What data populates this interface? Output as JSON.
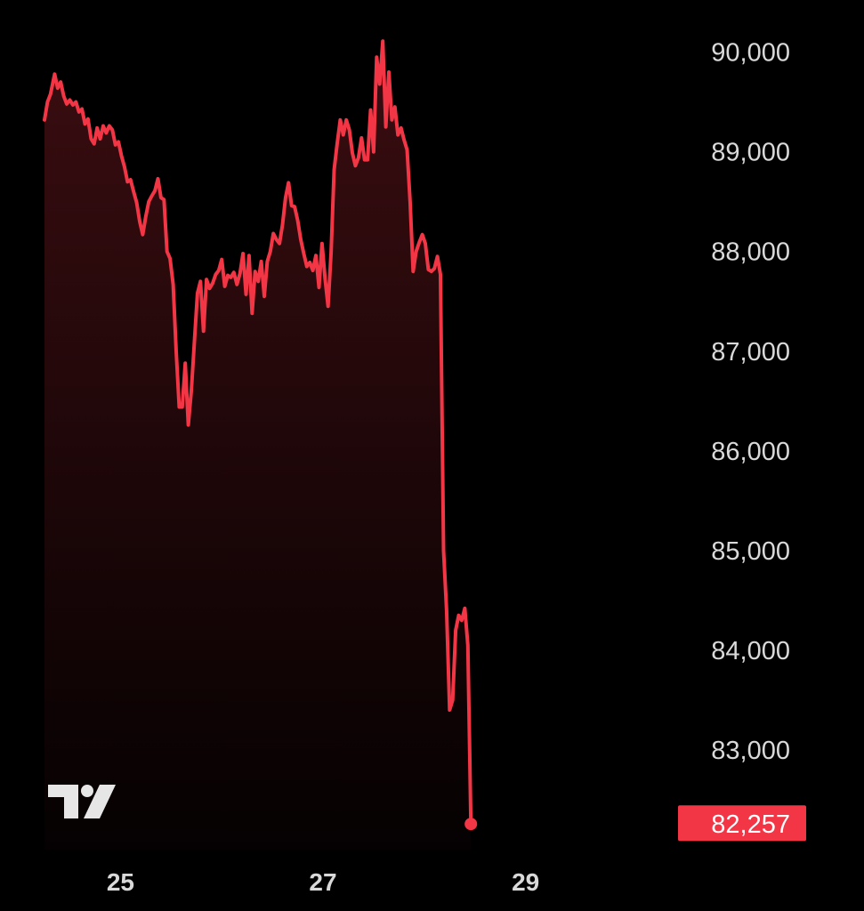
{
  "colors": {
    "background": "#000000",
    "line": "#f23645",
    "axis_text": "#d9d9d9",
    "badge_text": "#ffffff"
  },
  "logo": {
    "icon": "tradingview-logo-icon",
    "text": "TV"
  },
  "chart_data": {
    "type": "area",
    "title": "",
    "xlabel": "",
    "ylabel": "",
    "x_ticks": [
      {
        "label": "25",
        "x": 25.0
      },
      {
        "label": "27",
        "x": 27.0
      },
      {
        "label": "29",
        "x": 29.0
      }
    ],
    "y_ticks": [
      "90,000",
      "89,000",
      "88,000",
      "87,000",
      "86,000",
      "85,000",
      "84,000",
      "83,000"
    ],
    "y_tick_values": [
      90000,
      89000,
      88000,
      87000,
      86000,
      85000,
      84000,
      83000
    ],
    "ylim": [
      82000,
      90300
    ],
    "xlim": [
      24.25,
      30.4
    ],
    "grid": false,
    "last_value": 82257,
    "last_value_label": "82,257",
    "series": [
      {
        "values": [
          [
            24.25,
            89320
          ],
          [
            24.28,
            89500
          ],
          [
            24.31,
            89580
          ],
          [
            24.35,
            89780
          ],
          [
            24.38,
            89640
          ],
          [
            24.41,
            89700
          ],
          [
            24.44,
            89560
          ],
          [
            24.47,
            89480
          ],
          [
            24.5,
            89520
          ],
          [
            24.53,
            89470
          ],
          [
            24.56,
            89500
          ],
          [
            24.59,
            89400
          ],
          [
            24.62,
            89430
          ],
          [
            24.65,
            89280
          ],
          [
            24.68,
            89330
          ],
          [
            24.71,
            89130
          ],
          [
            24.74,
            89080
          ],
          [
            24.77,
            89240
          ],
          [
            24.8,
            89130
          ],
          [
            24.83,
            89260
          ],
          [
            24.86,
            89190
          ],
          [
            24.89,
            89260
          ],
          [
            24.92,
            89220
          ],
          [
            24.95,
            89070
          ],
          [
            24.98,
            89100
          ],
          [
            25.01,
            88960
          ],
          [
            25.04,
            88850
          ],
          [
            25.07,
            88700
          ],
          [
            25.1,
            88720
          ],
          [
            25.13,
            88600
          ],
          [
            25.16,
            88490
          ],
          [
            25.19,
            88300
          ],
          [
            25.22,
            88170
          ],
          [
            25.25,
            88350
          ],
          [
            25.28,
            88500
          ],
          [
            25.31,
            88560
          ],
          [
            25.34,
            88610
          ],
          [
            25.37,
            88730
          ],
          [
            25.4,
            88540
          ],
          [
            25.43,
            88520
          ],
          [
            25.46,
            88000
          ],
          [
            25.49,
            87930
          ],
          [
            25.52,
            87670
          ],
          [
            25.55,
            87000
          ],
          [
            25.58,
            86440
          ],
          [
            25.61,
            86440
          ],
          [
            25.64,
            86880
          ],
          [
            25.67,
            86260
          ],
          [
            25.7,
            86600
          ],
          [
            25.73,
            87100
          ],
          [
            25.76,
            87580
          ],
          [
            25.79,
            87700
          ],
          [
            25.82,
            87200
          ],
          [
            25.85,
            87720
          ],
          [
            25.88,
            87630
          ],
          [
            25.91,
            87680
          ],
          [
            25.94,
            87770
          ],
          [
            25.97,
            87810
          ],
          [
            26.0,
            87920
          ],
          [
            26.03,
            87650
          ],
          [
            26.06,
            87760
          ],
          [
            26.09,
            87740
          ],
          [
            26.12,
            87790
          ],
          [
            26.15,
            87670
          ],
          [
            26.18,
            87780
          ],
          [
            26.21,
            87980
          ],
          [
            26.24,
            87570
          ],
          [
            26.27,
            87960
          ],
          [
            26.3,
            87380
          ],
          [
            26.33,
            87800
          ],
          [
            26.36,
            87700
          ],
          [
            26.39,
            87900
          ],
          [
            26.42,
            87550
          ],
          [
            26.45,
            87900
          ],
          [
            26.48,
            88000
          ],
          [
            26.51,
            88180
          ],
          [
            26.54,
            88120
          ],
          [
            26.57,
            88080
          ],
          [
            26.6,
            88270
          ],
          [
            26.63,
            88540
          ],
          [
            26.66,
            88690
          ],
          [
            26.69,
            88460
          ],
          [
            26.72,
            88450
          ],
          [
            26.75,
            88310
          ],
          [
            26.78,
            88120
          ],
          [
            26.81,
            87980
          ],
          [
            26.84,
            87850
          ],
          [
            26.87,
            87890
          ],
          [
            26.9,
            87810
          ],
          [
            26.93,
            87960
          ],
          [
            26.96,
            87640
          ],
          [
            26.99,
            88080
          ],
          [
            27.02,
            87730
          ],
          [
            27.05,
            87450
          ],
          [
            27.08,
            87990
          ],
          [
            27.11,
            88820
          ],
          [
            27.14,
            89080
          ],
          [
            27.17,
            89320
          ],
          [
            27.2,
            89170
          ],
          [
            27.23,
            89320
          ],
          [
            27.26,
            89220
          ],
          [
            27.29,
            88990
          ],
          [
            27.32,
            88860
          ],
          [
            27.35,
            88940
          ],
          [
            27.38,
            89140
          ],
          [
            27.41,
            88920
          ],
          [
            27.44,
            88920
          ],
          [
            27.47,
            89420
          ],
          [
            27.5,
            89000
          ],
          [
            27.53,
            89950
          ],
          [
            27.56,
            89680
          ],
          [
            27.59,
            90110
          ],
          [
            27.62,
            89250
          ],
          [
            27.65,
            89800
          ],
          [
            27.68,
            89320
          ],
          [
            27.71,
            89450
          ],
          [
            27.74,
            89170
          ],
          [
            27.77,
            89240
          ],
          [
            27.8,
            89120
          ],
          [
            27.83,
            89020
          ],
          [
            27.86,
            88500
          ],
          [
            27.89,
            87800
          ],
          [
            27.92,
            88000
          ],
          [
            27.95,
            88090
          ],
          [
            27.98,
            88170
          ],
          [
            28.01,
            88080
          ],
          [
            28.04,
            87820
          ],
          [
            28.07,
            87800
          ],
          [
            28.1,
            87830
          ],
          [
            28.13,
            87950
          ],
          [
            28.16,
            87770
          ],
          [
            28.19,
            85000
          ],
          [
            28.22,
            84400
          ],
          [
            28.25,
            83400
          ],
          [
            28.28,
            83500
          ],
          [
            28.31,
            84200
          ],
          [
            28.34,
            84350
          ],
          [
            28.37,
            84300
          ],
          [
            28.4,
            84420
          ],
          [
            28.43,
            84050
          ],
          [
            28.46,
            82257
          ]
        ]
      }
    ]
  }
}
